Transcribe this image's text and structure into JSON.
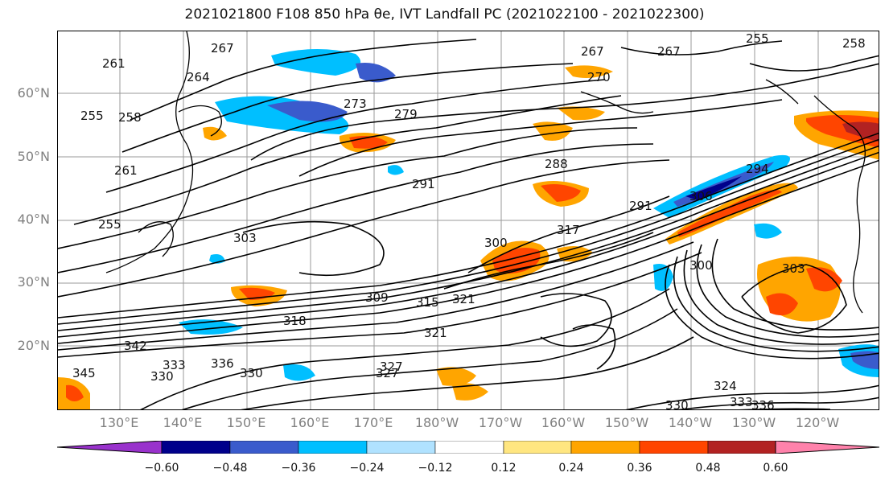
{
  "title": "2021021800 F108 850 hPa θe, IVT Landfall PC (2021022100 - 2021022300)",
  "map": {
    "lat_labels": [
      "60°N",
      "50°N",
      "40°N",
      "30°N",
      "20°N"
    ],
    "lon_labels": [
      "130°E",
      "140°E",
      "150°E",
      "160°E",
      "170°E",
      "180°W",
      "170°W",
      "160°W",
      "150°W",
      "140°W",
      "130°W",
      "120°W"
    ],
    "contour_labels": [
      "267",
      "261",
      "264",
      "255",
      "258",
      "273",
      "279",
      "261",
      "255",
      "291",
      "288",
      "267",
      "270",
      "267",
      "258",
      "255",
      "303",
      "300",
      "317",
      "309",
      "315",
      "321",
      "318",
      "342",
      "336",
      "327",
      "330",
      "333",
      "330",
      "345",
      "324",
      "333",
      "336",
      "300",
      "294",
      "306",
      "291",
      "303",
      "321",
      "327",
      "330"
    ]
  },
  "colorbar": {
    "colors": [
      "#9932CC",
      "#00008B",
      "#3A5BCC",
      "#00BFFF",
      "#B0E2FF",
      "#FFFFFF",
      "#FFE680",
      "#FFA500",
      "#FF4500",
      "#B22222",
      "#FF82AB"
    ],
    "tick_labels": [
      "−0.60",
      "−0.48",
      "−0.36",
      "−0.24",
      "−0.12",
      "0.12",
      "0.24",
      "0.36",
      "0.48",
      "0.60"
    ]
  }
}
